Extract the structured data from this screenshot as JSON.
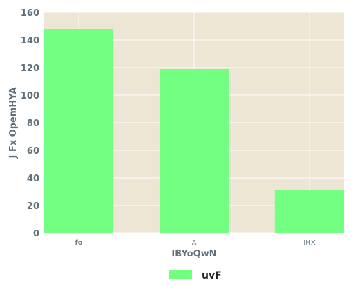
{
  "chart_data": {
    "type": "bar",
    "categories": [
      "fo",
      "A",
      "IHX"
    ],
    "series": [
      {
        "name": "uvF",
        "values": [
          148,
          119,
          31
        ]
      }
    ],
    "xlabel": "IBYoQwN",
    "ylabel": "J Fx OpemHYA",
    "ylim": [
      0,
      160
    ],
    "yticks": [
      0,
      20,
      40,
      60,
      80,
      100,
      120,
      140,
      160
    ],
    "grid": true,
    "legend": "bottom-center",
    "colors": {
      "bar": "#72ff82",
      "plot_background": "#ede6d4",
      "grid": "#ffffff",
      "text": "#5f6e78"
    }
  }
}
